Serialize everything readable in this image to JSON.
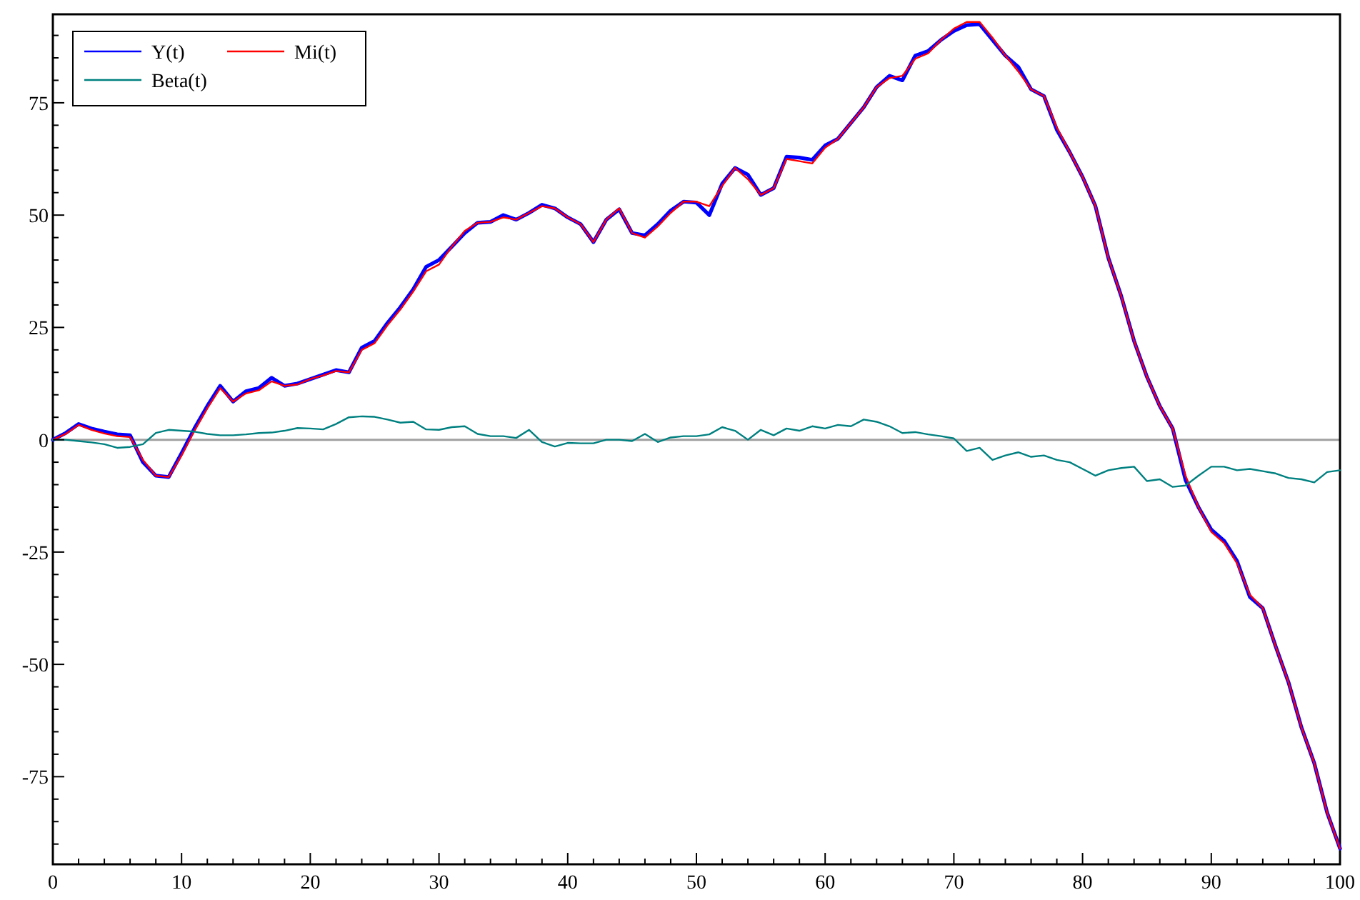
{
  "chart_data": {
    "type": "line",
    "x": [
      0,
      1,
      2,
      3,
      4,
      5,
      6,
      7,
      8,
      9,
      10,
      11,
      12,
      13,
      14,
      15,
      16,
      17,
      18,
      19,
      20,
      21,
      22,
      23,
      24,
      25,
      26,
      27,
      28,
      29,
      30,
      31,
      32,
      33,
      34,
      35,
      36,
      37,
      38,
      39,
      40,
      41,
      42,
      43,
      44,
      45,
      46,
      47,
      48,
      49,
      50,
      51,
      52,
      53,
      54,
      55,
      56,
      57,
      58,
      59,
      60,
      61,
      62,
      63,
      64,
      65,
      66,
      67,
      68,
      69,
      70,
      71,
      72,
      73,
      74,
      75,
      76,
      77,
      78,
      79,
      80,
      81,
      82,
      83,
      84,
      85,
      86,
      87,
      88,
      89,
      90,
      91,
      92,
      93,
      94,
      95,
      96,
      97,
      98,
      99,
      100
    ],
    "series": [
      {
        "name": "Y(t)",
        "color": "#0000ff",
        "values": [
          0,
          1.5,
          3.5,
          2.5,
          1.8,
          1.2,
          1,
          -5,
          -8,
          -8.3,
          -3,
          2.5,
          7.5,
          12,
          8.5,
          10.8,
          11.5,
          13.8,
          12,
          12.5,
          13.5,
          14.5,
          15.5,
          15,
          20.5,
          22,
          26,
          29.5,
          33.5,
          38.5,
          40,
          43,
          46,
          48.3,
          48.5,
          50,
          49,
          50.5,
          52.3,
          51.5,
          49.5,
          48,
          44,
          49,
          51.3,
          46,
          45.5,
          48,
          51,
          53,
          52.8,
          50,
          57,
          60.5,
          59,
          54.5,
          56,
          63,
          62.8,
          62.3,
          65.5,
          67,
          70.5,
          74,
          78.5,
          81,
          80,
          85.5,
          86.5,
          89,
          91,
          92.3,
          92.5,
          89,
          85.5,
          83,
          78,
          76.5,
          69,
          64,
          58.5,
          52,
          40.5,
          32,
          22,
          14,
          7.5,
          2.5,
          -9,
          -15,
          -20,
          -22.5,
          -27,
          -35,
          -37.5,
          -46,
          -54,
          -64,
          -72,
          -83,
          -91
        ]
      },
      {
        "name": "Mi(t)",
        "color": "#ff0000",
        "values": [
          0,
          1.3,
          3.3,
          2.2,
          1.4,
          0.8,
          0.6,
          -4.5,
          -8,
          -8.3,
          -3.5,
          2,
          7,
          11.5,
          8.5,
          10.3,
          11,
          13,
          12,
          12.3,
          13.5,
          14.3,
          15.3,
          15,
          20,
          21.5,
          25.5,
          29,
          33,
          37.5,
          39,
          43,
          46.5,
          48.3,
          48.5,
          49.5,
          49,
          50.5,
          52,
          51.5,
          49.5,
          48,
          44,
          49,
          51.5,
          46,
          45,
          47.5,
          50.5,
          53,
          53,
          52,
          56.5,
          60.5,
          58,
          54.5,
          56,
          62.5,
          62,
          61.5,
          65,
          67,
          70.5,
          74,
          78.5,
          80.5,
          81,
          84.8,
          86,
          89,
          91.5,
          93,
          93,
          89.5,
          85.5,
          82,
          78,
          76.5,
          69.5,
          64,
          58.5,
          52,
          40.5,
          32,
          22,
          14,
          7.5,
          2.5,
          -8,
          -15,
          -20.5,
          -23,
          -27.5,
          -34.5,
          -37.5,
          -46,
          -54,
          -64,
          -72,
          -83,
          -91
        ]
      },
      {
        "name": "Beta(t)",
        "color": "#008080",
        "values": [
          0,
          0,
          -0.3,
          -0.6,
          -1,
          -1.8,
          -1.6,
          -1,
          1.5,
          2.2,
          2,
          1.8,
          1.3,
          1,
          1,
          1.2,
          1.5,
          1.6,
          2,
          2.6,
          2.5,
          2.3,
          3.5,
          5,
          5.2,
          5.1,
          4.5,
          3.8,
          4,
          2.3,
          2.2,
          2.8,
          3,
          1.3,
          0.8,
          0.8,
          0.4,
          2.2,
          -0.5,
          -1.5,
          -0.7,
          -0.8,
          -0.8,
          0,
          0,
          -0.3,
          1.3,
          -0.5,
          0.5,
          0.8,
          0.8,
          1.2,
          2.8,
          2,
          0,
          2.2,
          1,
          2.5,
          2,
          3,
          2.5,
          3.3,
          3,
          4.5,
          4,
          3,
          1.5,
          1.7,
          1.2,
          0.8,
          0.3,
          -2.5,
          -1.8,
          -4.5,
          -3.5,
          -2.8,
          -3.8,
          -3.5,
          -4.5,
          -5,
          -6.5,
          -8,
          -6.8,
          -6.3,
          -6,
          -9.2,
          -8.8,
          -10.5,
          -10.2,
          -8,
          -6,
          -6,
          -6.8,
          -6.5,
          -7,
          -7.5,
          -8.5,
          -8.8,
          -9.5,
          -7.2,
          -6.8
        ]
      }
    ],
    "xlim": [
      0,
      100
    ],
    "xticks": [
      0,
      {
        "value": 2,
        "label": null
      },
      {
        "value": 4,
        "label": null
      },
      {
        "value": 6,
        "label": null
      },
      {
        "value": 8,
        "label": null
      },
      10,
      {
        "value": 12,
        "label": null
      },
      {
        "value": 14,
        "label": null
      },
      {
        "value": 16,
        "label": null
      },
      {
        "value": 18,
        "label": null
      },
      20,
      {
        "value": 22,
        "label": null
      },
      {
        "value": 24,
        "label": null
      },
      {
        "value": 26,
        "label": null
      },
      {
        "value": 28,
        "label": null
      },
      30,
      {
        "value": 32,
        "label": null
      },
      {
        "value": 34,
        "label": null
      },
      {
        "value": 36,
        "label": null
      },
      {
        "value": 38,
        "label": null
      },
      40,
      {
        "value": 42,
        "label": null
      },
      {
        "value": 44,
        "label": null
      },
      {
        "value": 46,
        "label": null
      },
      {
        "value": 48,
        "label": null
      },
      50,
      {
        "value": 52,
        "label": null
      },
      {
        "value": 54,
        "label": null
      },
      {
        "value": 56,
        "label": null
      },
      {
        "value": 58,
        "label": null
      },
      60,
      {
        "value": 62,
        "label": null
      },
      {
        "value": 64,
        "label": null
      },
      {
        "value": 66,
        "label": null
      },
      {
        "value": 68,
        "label": null
      },
      70,
      {
        "value": 72,
        "label": null
      },
      {
        "value": 74,
        "label": null
      },
      {
        "value": 76,
        "label": null
      },
      {
        "value": 78,
        "label": null
      },
      80,
      {
        "value": 82,
        "label": null
      },
      {
        "value": 84,
        "label": null
      },
      {
        "value": 86,
        "label": null
      },
      {
        "value": 88,
        "label": null
      },
      90,
      {
        "value": 92,
        "label": null
      },
      {
        "value": 94,
        "label": null
      },
      {
        "value": 96,
        "label": null
      },
      {
        "value": 98,
        "label": null
      },
      100
    ],
    "ylim": [
      -94.5,
      94.7
    ],
    "yticks": [
      {
        "value": -90,
        "label": null
      },
      {
        "value": -85,
        "label": null
      },
      {
        "value": -80,
        "label": null
      },
      -75,
      {
        "value": -70,
        "label": null
      },
      {
        "value": -65,
        "label": null
      },
      {
        "value": -60,
        "label": null
      },
      {
        "value": -55,
        "label": null
      },
      -50,
      {
        "value": -45,
        "label": null
      },
      {
        "value": -40,
        "label": null
      },
      {
        "value": -35,
        "label": null
      },
      {
        "value": -30,
        "label": null
      },
      -25,
      {
        "value": -20,
        "label": null
      },
      {
        "value": -15,
        "label": null
      },
      {
        "value": -10,
        "label": null
      },
      {
        "value": -5,
        "label": null
      },
      0,
      {
        "value": 5,
        "label": null
      },
      {
        "value": 10,
        "label": null
      },
      {
        "value": 15,
        "label": null
      },
      {
        "value": 20,
        "label": null
      },
      25,
      {
        "value": 30,
        "label": null
      },
      {
        "value": 35,
        "label": null
      },
      {
        "value": 40,
        "label": null
      },
      {
        "value": 45,
        "label": null
      },
      50,
      {
        "value": 55,
        "label": null
      },
      {
        "value": 60,
        "label": null
      },
      {
        "value": 65,
        "label": null
      },
      {
        "value": 70,
        "label": null
      },
      75,
      {
        "value": 80,
        "label": null
      },
      {
        "value": 85,
        "label": null
      },
      {
        "value": 90,
        "label": null
      }
    ],
    "ref_lines": [
      {
        "axis": "y",
        "value": 0,
        "color": "#a0a0a0"
      }
    ],
    "legend": "top left",
    "grid": false,
    "marker": "none",
    "line_style": "solid"
  }
}
